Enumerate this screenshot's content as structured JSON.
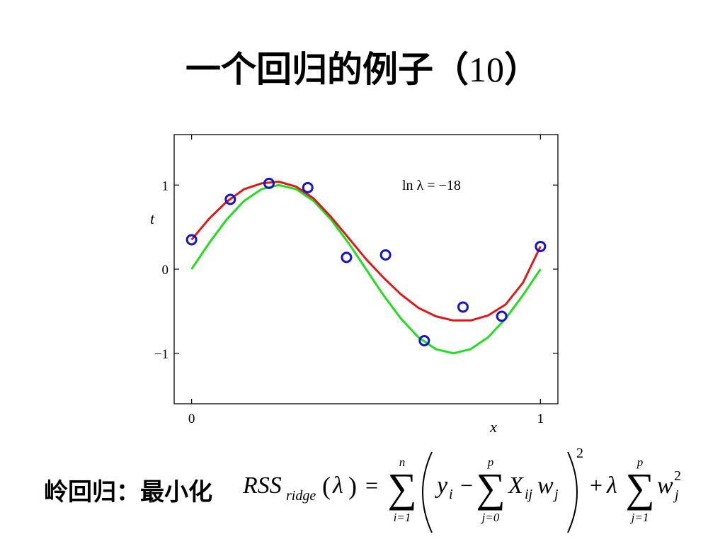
{
  "slide": {
    "title_text": "一个回归的例子（",
    "title_number": "10",
    "title_close": "）"
  },
  "chart_data": {
    "type": "line",
    "xlabel": "x",
    "ylabel": "t",
    "xlim": [
      -0.05,
      1.05
    ],
    "ylim": [
      -1.6,
      1.6
    ],
    "xticks": [
      0,
      1
    ],
    "xtick_labels": [
      "0",
      "1"
    ],
    "yticks": [
      -1,
      0,
      1
    ],
    "ytick_labels": [
      "−1",
      "0",
      "1"
    ],
    "annotation": "ln λ = −18",
    "grid": false,
    "points": {
      "x": [
        0.0,
        0.111,
        0.222,
        0.333,
        0.444,
        0.556,
        0.667,
        0.778,
        0.889,
        1.0
      ],
      "y": [
        0.35,
        0.83,
        1.02,
        0.97,
        0.14,
        0.17,
        -0.85,
        -0.45,
        -0.56,
        0.27
      ],
      "color": "#1515c8"
    },
    "series": [
      {
        "x": [
          0,
          0.05,
          0.1,
          0.15,
          0.2,
          0.25,
          0.3,
          0.35,
          0.4,
          0.45,
          0.5,
          0.55,
          0.6,
          0.65,
          0.7,
          0.75,
          0.8,
          0.85,
          0.9,
          0.95,
          1.0
        ],
        "y": [
          0.0,
          0.309,
          0.588,
          0.809,
          0.951,
          1.0,
          0.951,
          0.809,
          0.588,
          0.309,
          0.0,
          -0.309,
          -0.588,
          -0.809,
          -0.951,
          -1.0,
          -0.951,
          -0.809,
          -0.588,
          -0.309,
          0.0
        ],
        "color": "#22dd22"
      },
      {
        "x": [
          0,
          0.05,
          0.1,
          0.15,
          0.2,
          0.25,
          0.3,
          0.35,
          0.4,
          0.45,
          0.5,
          0.55,
          0.6,
          0.65,
          0.7,
          0.75,
          0.8,
          0.85,
          0.9,
          0.95,
          1.0
        ],
        "y": [
          0.35,
          0.6,
          0.8,
          0.95,
          1.02,
          1.04,
          0.98,
          0.84,
          0.62,
          0.37,
          0.12,
          -0.1,
          -0.3,
          -0.46,
          -0.56,
          -0.61,
          -0.61,
          -0.55,
          -0.42,
          -0.16,
          0.27
        ],
        "color": "#dd1a1a"
      }
    ]
  },
  "formula": {
    "label": "岭回归：最小化",
    "rss": "RSS",
    "rss_sub": "ridge",
    "lambda": "λ",
    "sum1_top": "n",
    "sum1_bottom": "i=1",
    "y": "y",
    "y_sub": "i",
    "sum2_top": "p",
    "sum2_bottom": "j=0",
    "X": "X",
    "X_sub": "ij",
    "w": "w",
    "w_sub": "j",
    "power": "2",
    "sum3_top": "p",
    "sum3_bottom": "j=1",
    "w2_sub": "j",
    "w2_sup": "2"
  }
}
